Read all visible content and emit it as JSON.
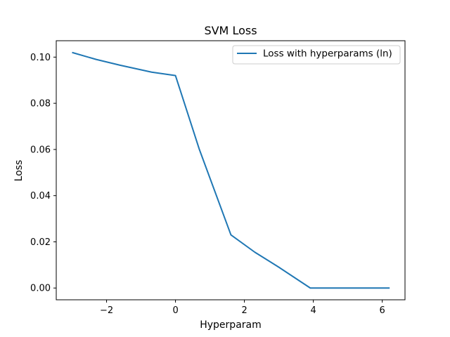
{
  "chart_data": {
    "type": "line",
    "title": "SVM Loss",
    "xlabel": "Hyperparam",
    "ylabel": "Loss",
    "xlim": [
      -3.46,
      6.66
    ],
    "ylim": [
      -0.0051,
      0.1071
    ],
    "xticks": [
      -2,
      0,
      2,
      4,
      6
    ],
    "xtick_labels": [
      "−2",
      "0",
      "2",
      "4",
      "6"
    ],
    "yticks": [
      0.0,
      0.02,
      0.04,
      0.06,
      0.08,
      0.1
    ],
    "ytick_labels": [
      "0.00",
      "0.02",
      "0.04",
      "0.06",
      "0.08",
      "0.10"
    ],
    "grid": false,
    "legend_position": "top-right",
    "series": [
      {
        "name": "Loss with hyperparams (ln)",
        "color": "#1f77b4",
        "x": [
          -3.0,
          -2.303,
          -1.609,
          -0.693,
          0.0,
          0.693,
          1.609,
          2.303,
          3.0,
          3.912,
          4.605,
          5.298,
          6.215
        ],
        "y": [
          0.102,
          0.099,
          0.0965,
          0.0935,
          0.092,
          0.06,
          0.023,
          0.0155,
          0.009,
          0.0,
          0.0,
          0.0,
          0.0
        ]
      }
    ]
  }
}
